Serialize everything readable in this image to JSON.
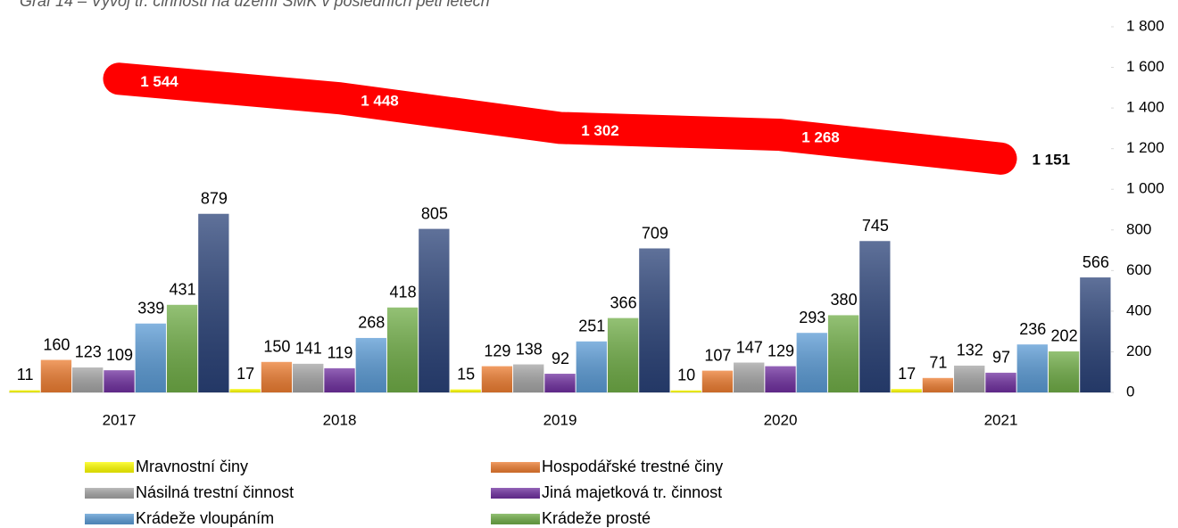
{
  "chart_data": {
    "type": "bar",
    "title": "Graf 14 – Vývoj tr. činnosti na území SMK v posledních pěti letech",
    "categories": [
      "2017",
      "2018",
      "2019",
      "2020",
      "2021"
    ],
    "series": [
      {
        "name": "Mravnostní činy",
        "color": "#ffff00",
        "values": [
          11,
          17,
          15,
          10,
          17
        ]
      },
      {
        "name": "Hospodářské trestné činy",
        "color": "#ed7d31",
        "values": [
          160,
          150,
          129,
          107,
          71
        ]
      },
      {
        "name": "Násilná trestní činnost",
        "color": "#a5a5a5",
        "values": [
          123,
          141,
          138,
          147,
          132
        ]
      },
      {
        "name": "Jiná majetková tr. činnost",
        "color": "#7030a0",
        "values": [
          109,
          119,
          92,
          129,
          97
        ]
      },
      {
        "name": "Krádeže vloupáním",
        "color": "#5b9bd5",
        "values": [
          339,
          268,
          251,
          293,
          236
        ]
      },
      {
        "name": "Krádeže prosté",
        "color": "#70ad47",
        "values": [
          431,
          418,
          366,
          380,
          202
        ]
      },
      {
        "color": "#2a4278",
        "values": [
          879,
          805,
          709,
          745,
          566
        ]
      },
      {
        "type": "line",
        "color": "#ff0000",
        "values": [
          1544,
          1448,
          1302,
          1268,
          1151
        ],
        "value_labels": [
          "1 544",
          "1 448",
          "1 302",
          "1 268",
          "1 151"
        ]
      }
    ],
    "ylim": [
      0,
      1800
    ],
    "yticks": [
      0,
      200,
      400,
      600,
      800,
      {
        "value": 1000,
        "label": "1 000"
      },
      {
        "value": 1200,
        "label": "1 200"
      },
      {
        "value": 1400,
        "label": "1 400"
      },
      {
        "value": 1600,
        "label": "1 600"
      },
      {
        "value": 1800,
        "label": "1 800"
      }
    ],
    "grid": false
  }
}
